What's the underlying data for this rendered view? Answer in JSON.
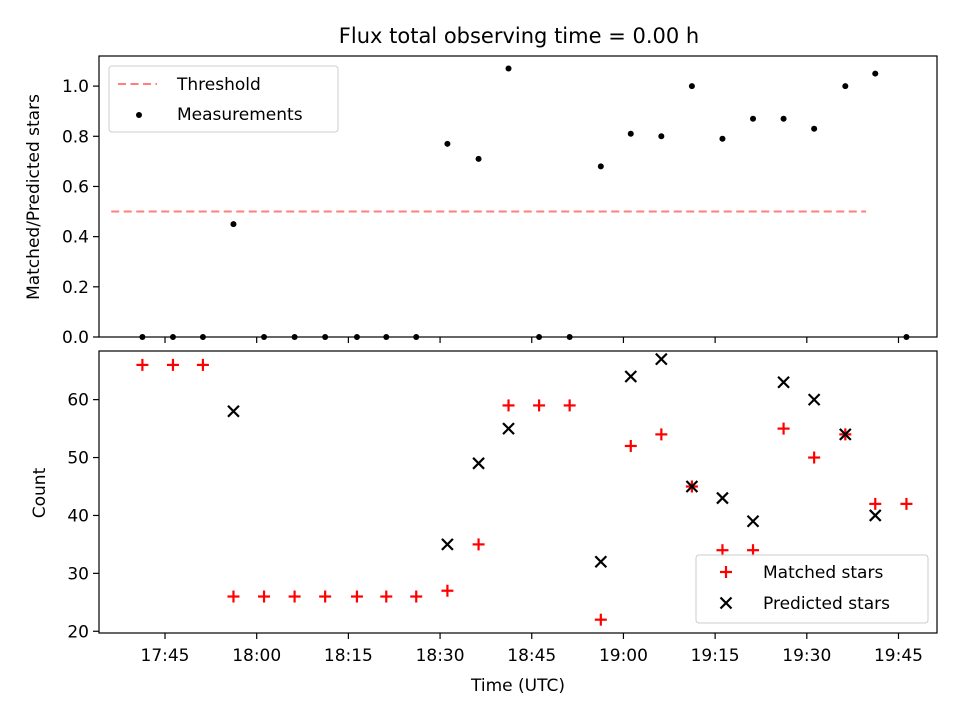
{
  "title": "Flux total observing time = 0.00 h",
  "colors": {
    "threshold": "#ff7f7f",
    "matched": "#ff0000",
    "predicted": "#000000",
    "measurement": "#000000"
  },
  "chart_data": [
    {
      "type": "scatter",
      "ylabel": "Matched/Predicted stars",
      "ylim": [
        0,
        1.12
      ],
      "yticks": [
        0.0,
        0.2,
        0.4,
        0.6,
        0.8,
        1.0
      ],
      "ytick_labels": [
        "0.0",
        "0.2",
        "0.4",
        "0.6",
        "0.8",
        "1.0"
      ],
      "legend": {
        "position": "top-left",
        "entries": [
          "Threshold",
          "Measurements"
        ]
      },
      "threshold": {
        "name": "Threshold",
        "y": 0.5,
        "x_range": [
          -23.8,
          99.7
        ]
      },
      "series": [
        {
          "name": "Measurements",
          "x": [
            -18.7,
            -13.7,
            -8.8,
            -3.8,
            1.2,
            6.2,
            11.2,
            16.4,
            21.2,
            26.1,
            31.2,
            36.3,
            41.2,
            46.2,
            51.2,
            56.3,
            61.2,
            66.2,
            71.2,
            76.2,
            81.2,
            86.2,
            91.2,
            96.3,
            101.2,
            106.3
          ],
          "y": [
            0.0,
            0.0,
            0.0,
            0.45,
            0.0,
            0.0,
            0.0,
            0.0,
            0.0,
            0.0,
            0.77,
            0.71,
            1.07,
            0.0,
            0.0,
            0.68,
            0.81,
            0.8,
            1.0,
            0.79,
            0.87,
            0.87,
            0.83,
            1.0,
            1.05,
            0.0
          ]
        }
      ]
    },
    {
      "type": "scatter",
      "title": "",
      "xlabel": "Time (UTC)",
      "ylabel": "Count",
      "ylim": [
        19.7,
        68.4
      ],
      "yticks": [
        20,
        30,
        40,
        50,
        60
      ],
      "ytick_labels": [
        "20",
        "30",
        "40",
        "50",
        "60"
      ],
      "xlim": [
        -25.8,
        111.3
      ],
      "xticks": [
        -15,
        0,
        15,
        30,
        45,
        60,
        75,
        90,
        105
      ],
      "xtick_labels": [
        "17:45",
        "18:00",
        "18:15",
        "18:30",
        "18:45",
        "19:00",
        "19:15",
        "19:30",
        "19:45"
      ],
      "legend": {
        "position": "bottom-right",
        "entries": [
          "Matched stars",
          "Predicted stars"
        ]
      },
      "series": [
        {
          "name": "Matched stars",
          "marker": "plus",
          "x": [
            -18.7,
            -13.7,
            -8.8,
            -3.8,
            1.2,
            6.2,
            11.2,
            16.4,
            21.2,
            26.1,
            31.2,
            36.3,
            41.2,
            46.2,
            51.2,
            56.3,
            61.2,
            66.2,
            71.2,
            76.2,
            81.2,
            86.2,
            91.2,
            96.3,
            101.2,
            106.3
          ],
          "y": [
            66,
            66,
            66,
            26,
            26,
            26,
            26,
            26,
            26,
            26,
            27,
            35,
            59,
            59,
            59,
            22,
            52,
            54,
            45,
            34,
            34,
            55,
            50,
            54,
            42,
            42
          ]
        },
        {
          "name": "Predicted stars",
          "marker": "x",
          "x": [
            -3.8,
            31.2,
            36.3,
            41.2,
            56.3,
            61.2,
            66.2,
            71.2,
            76.2,
            81.2,
            86.2,
            91.2,
            96.3,
            101.2
          ],
          "y": [
            58,
            35,
            49,
            55,
            32,
            64,
            67,
            45,
            43,
            39,
            63,
            60,
            54,
            40
          ]
        }
      ]
    }
  ]
}
